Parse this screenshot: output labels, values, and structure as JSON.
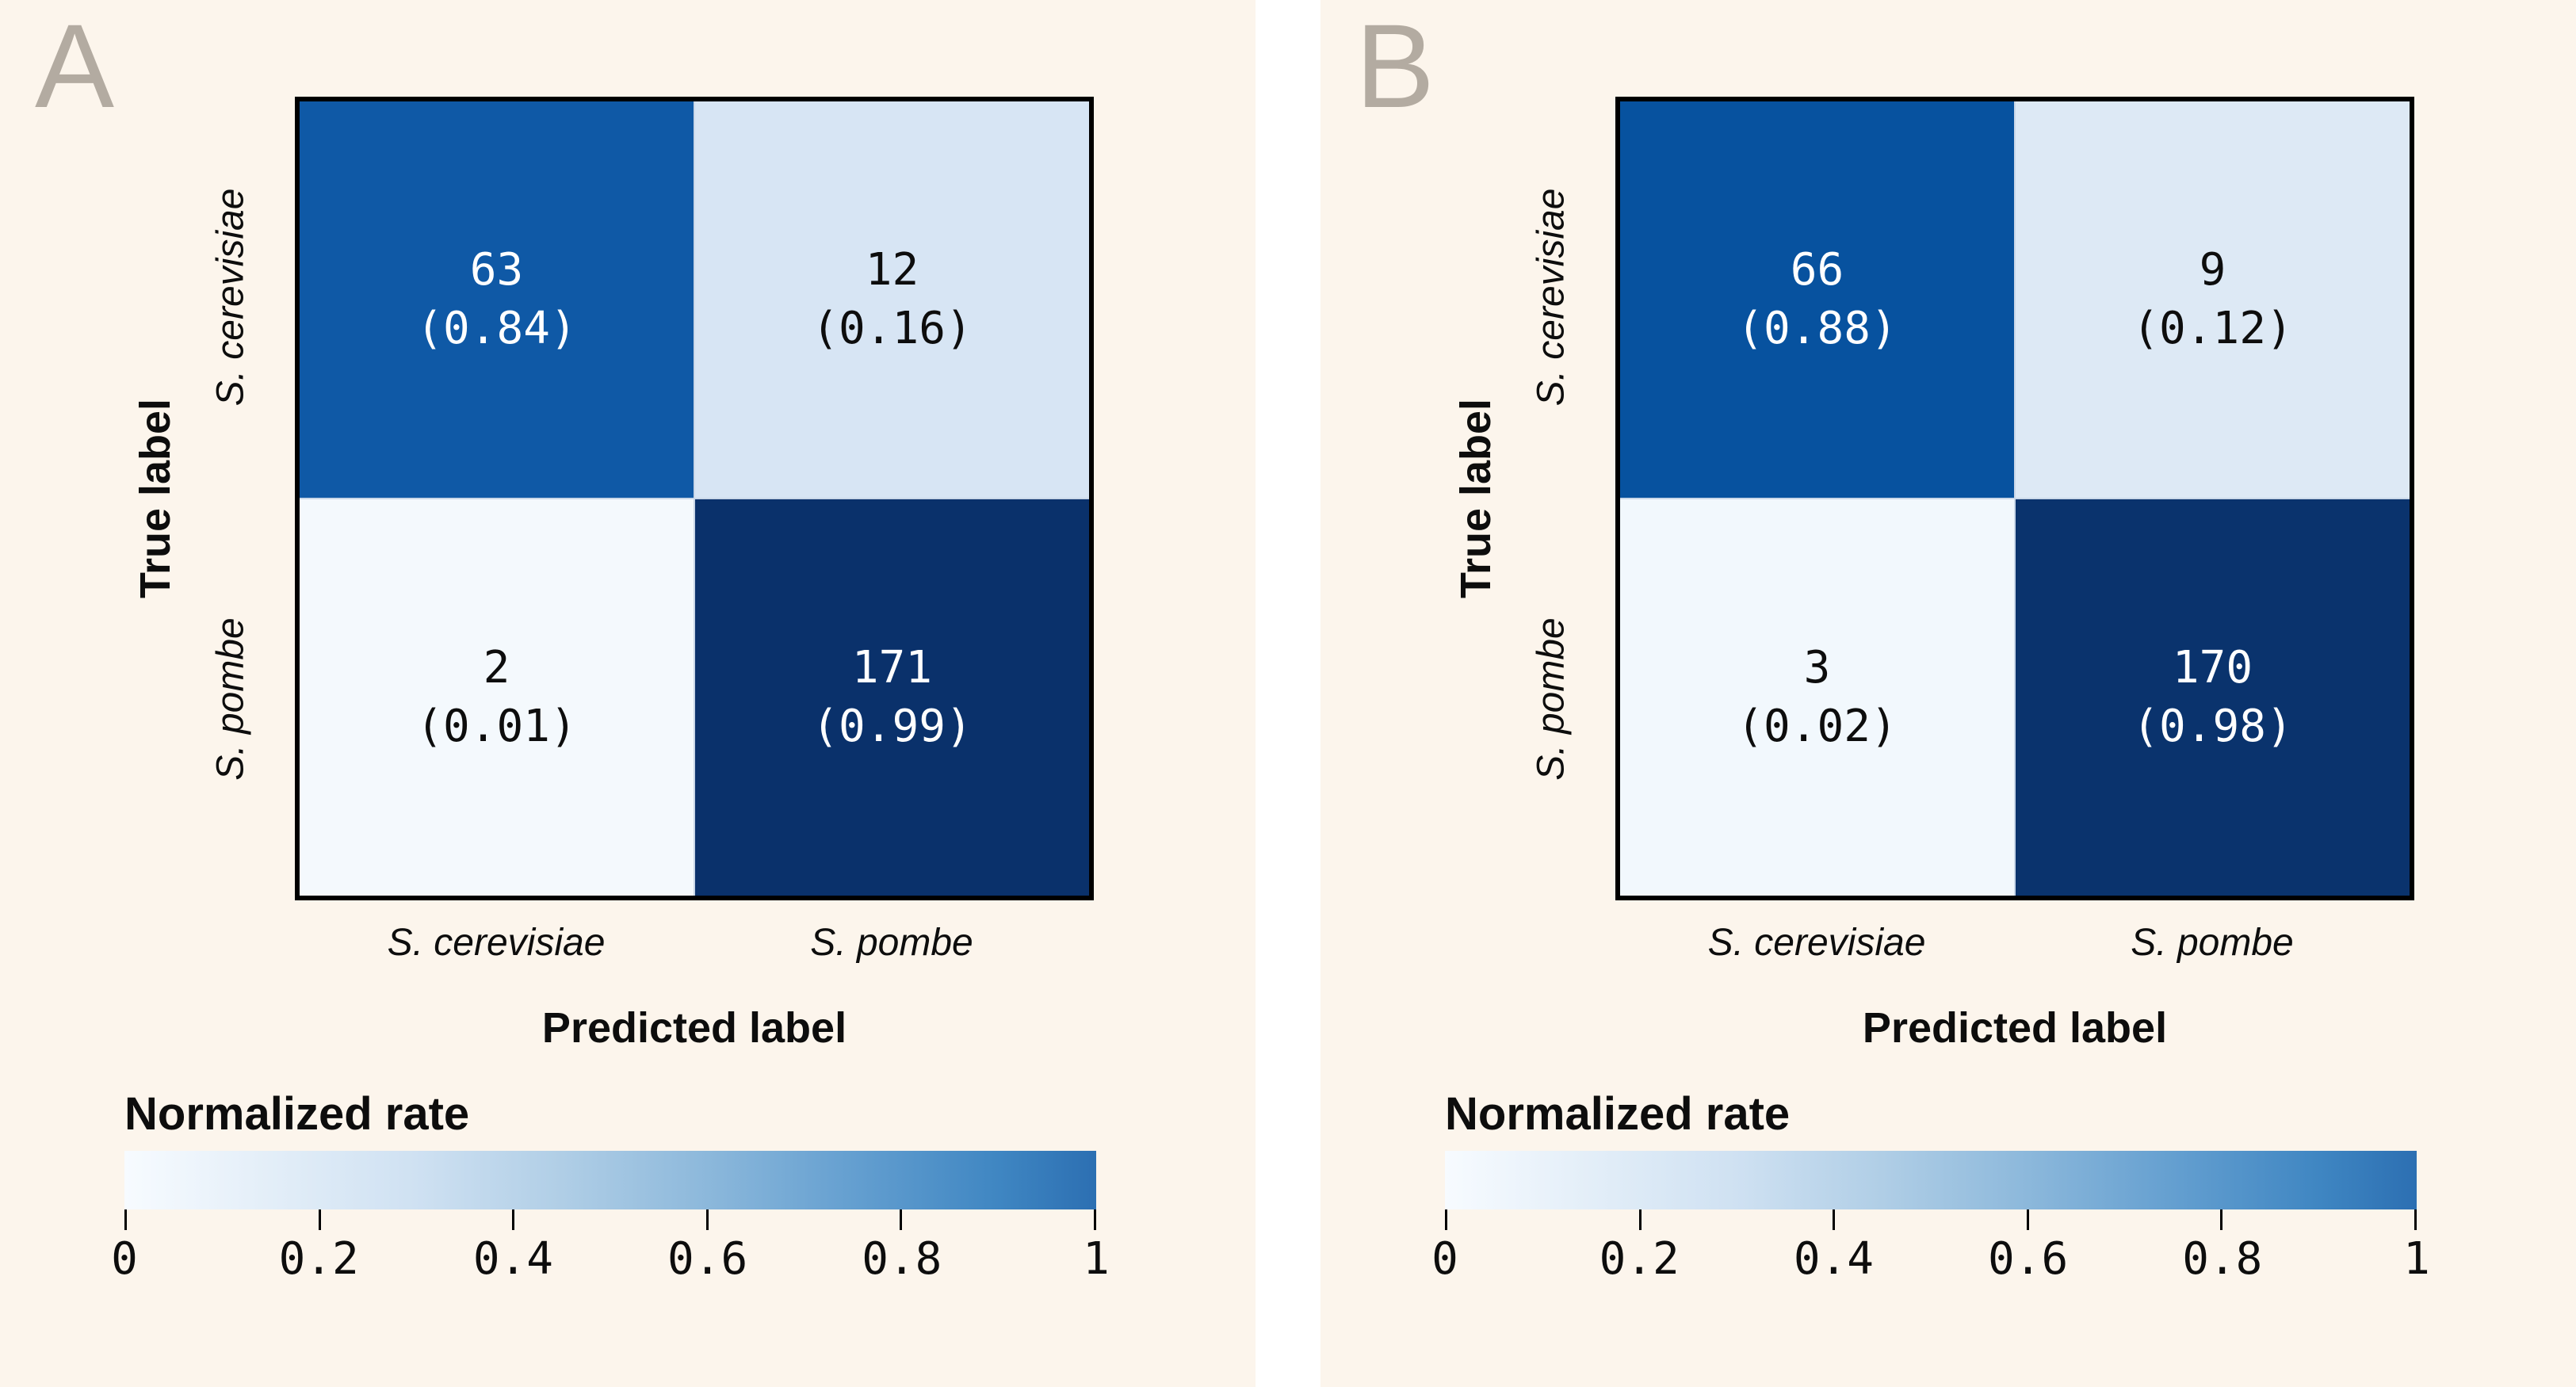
{
  "colors": {
    "gutter_bg": "#ffffff",
    "panel_bg": "#fcf5ec",
    "panel_tag": "#b3aba1",
    "matrix_border": "#000000",
    "colorbar_gradient": [
      "#f7fbff 0%",
      "#e3eef8 15%",
      "#cfe1f2 30%",
      "#b0cee6 45%",
      "#8cb8db 60%",
      "#649fd0 75%",
      "#3f86c2 90%",
      "#2c6fb2 100%"
    ]
  },
  "panels": [
    {
      "tag": "A",
      "y_axis_title": "True label",
      "x_axis_title": "Predicted label",
      "row_labels": [
        "S. cerevisiae",
        "S. pombe"
      ],
      "col_labels": [
        "S. cerevisiae",
        "S. pombe"
      ],
      "cells": [
        {
          "count": "63",
          "rate": "(0.84)",
          "bg": "#0f59a6",
          "fg": "#ffffff"
        },
        {
          "count": "12",
          "rate": "(0.16)",
          "bg": "#d7e5f4",
          "fg": "#0d0d0d"
        },
        {
          "count": "2",
          "rate": "(0.01)",
          "bg": "#f4f9fd",
          "fg": "#0d0d0d"
        },
        {
          "count": "171",
          "rate": "(0.99)",
          "bg": "#0a316b",
          "fg": "#ffffff"
        }
      ],
      "colorbar": {
        "title": "Normalized rate",
        "tick_labels": [
          "0",
          "0.2",
          "0.4",
          "0.6",
          "0.8",
          "1"
        ]
      }
    },
    {
      "tag": "B",
      "y_axis_title": "True label",
      "x_axis_title": "Predicted label",
      "row_labels": [
        "S. cerevisiae",
        "S. pombe"
      ],
      "col_labels": [
        "S. cerevisiae",
        "S. pombe"
      ],
      "cells": [
        {
          "count": "66",
          "rate": "(0.88)",
          "bg": "#07529f",
          "fg": "#ffffff"
        },
        {
          "count": "9",
          "rate": "(0.12)",
          "bg": "#dde9f5",
          "fg": "#0d0d0d"
        },
        {
          "count": "3",
          "rate": "(0.02)",
          "bg": "#f2f8fd",
          "fg": "#0d0d0d"
        },
        {
          "count": "170",
          "rate": "(0.98)",
          "bg": "#0a336d",
          "fg": "#ffffff"
        }
      ],
      "colorbar": {
        "title": "Normalized rate",
        "tick_labels": [
          "0",
          "0.2",
          "0.4",
          "0.6",
          "0.8",
          "1"
        ]
      }
    }
  ],
  "chart_data": [
    {
      "type": "heatmap",
      "panel": "A",
      "title": "",
      "xlabel": "Predicted label",
      "ylabel": "True label",
      "x_categories": [
        "S. cerevisiae",
        "S. pombe"
      ],
      "y_categories": [
        "S. cerevisiae",
        "S. pombe"
      ],
      "counts": [
        [
          63,
          12
        ],
        [
          2,
          171
        ]
      ],
      "normalized_rates": [
        [
          0.84,
          0.16
        ],
        [
          0.01,
          0.99
        ]
      ],
      "colorbar": {
        "title": "Normalized rate",
        "range": [
          0,
          1
        ],
        "ticks": [
          0,
          0.2,
          0.4,
          0.6,
          0.8,
          1
        ],
        "colormap": "Blues"
      },
      "legend_position": "bottom",
      "grid": false
    },
    {
      "type": "heatmap",
      "panel": "B",
      "title": "",
      "xlabel": "Predicted label",
      "ylabel": "True label",
      "x_categories": [
        "S. cerevisiae",
        "S. pombe"
      ],
      "y_categories": [
        "S. cerevisiae",
        "S. pombe"
      ],
      "counts": [
        [
          66,
          9
        ],
        [
          3,
          170
        ]
      ],
      "normalized_rates": [
        [
          0.88,
          0.12
        ],
        [
          0.02,
          0.98
        ]
      ],
      "colorbar": {
        "title": "Normalized rate",
        "range": [
          0,
          1
        ],
        "ticks": [
          0,
          0.2,
          0.4,
          0.6,
          0.8,
          1
        ],
        "colormap": "Blues"
      },
      "legend_position": "bottom",
      "grid": false
    }
  ]
}
